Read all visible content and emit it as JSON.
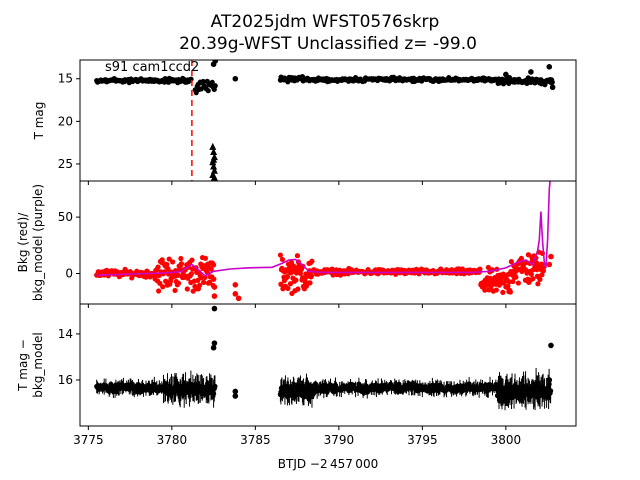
{
  "title_line1": "AT2025jdm  WFST0576skrp",
  "title_line2": "20.39g-WFST Unclassified z= -99.0",
  "chart_data": [
    {
      "type": "scatter",
      "panel": "top",
      "ylabel": "T mag",
      "y_inverted": true,
      "xlim": [
        3774.5,
        3804.2
      ],
      "ylim": [
        27.0,
        12.8
      ],
      "yticks": [
        15,
        20,
        25
      ],
      "annotation": "s91 cam1ccd2",
      "vline": {
        "x": 3781.2,
        "color": "#ff0000",
        "style": "dashed"
      },
      "series": [
        {
          "kind": "dots",
          "color": "#000000",
          "segments": [
            {
              "x0": 3775.5,
              "x1": 3781.2,
              "y": 15.2,
              "jitter": 0.35,
              "step": 0.05
            },
            {
              "x0": 3781.4,
              "x1": 3782.6,
              "y": 16.0,
              "jitter": 0.9,
              "step": 0.06
            },
            {
              "x0": 3786.5,
              "x1": 3788.0,
              "y": 15.0,
              "jitter": 0.4,
              "step": 0.04
            },
            {
              "x0": 3788.0,
              "x1": 3799.5,
              "y": 15.1,
              "jitter": 0.3,
              "step": 0.06
            },
            {
              "x0": 3799.5,
              "x1": 3802.8,
              "y": 15.3,
              "jitter": 0.5,
              "step": 0.04
            }
          ],
          "points": [
            [
              3782.6,
              12.9
            ],
            [
              3782.5,
              13.3
            ],
            [
              3783.8,
              15.0
            ],
            [
              3802.6,
              13.6
            ],
            [
              3802.8,
              16.0
            ],
            [
              3800.0,
              14.5
            ],
            [
              3801.5,
              14.2
            ]
          ]
        },
        {
          "kind": "triangles",
          "color": "#000000",
          "points": [
            [
              3782.45,
              23.0
            ],
            [
              3782.5,
              23.6
            ],
            [
              3782.55,
              24.2
            ],
            [
              3782.45,
              24.8
            ],
            [
              3782.5,
              25.3
            ],
            [
              3782.55,
              25.8
            ],
            [
              3782.45,
              26.3
            ],
            [
              3782.5,
              26.8
            ],
            [
              3782.55,
              26.6
            ],
            [
              3782.5,
              24.5
            ]
          ]
        }
      ]
    },
    {
      "type": "line",
      "panel": "middle",
      "ylabel": "Bkg (red)/\nbkg_model (purple)",
      "xlim": [
        3774.5,
        3804.2
      ],
      "ylim": [
        -27,
        82
      ],
      "yticks": [
        0,
        50
      ],
      "series": [
        {
          "name": "",
          "kind": "dots",
          "color": "#ff0000",
          "segments": [
            {
              "x0": 3775.5,
              "x1": 3779.0,
              "y": 0.0,
              "jitter": 4.5,
              "step": 0.05
            },
            {
              "x0": 3779.0,
              "x1": 3782.5,
              "y": 0.0,
              "jitter": 22.0,
              "step": 0.035
            },
            {
              "x0": 3786.5,
              "x1": 3788.4,
              "y": 0.0,
              "jitter": 22.0,
              "step": 0.03
            },
            {
              "x0": 3788.4,
              "x1": 3798.5,
              "y": 1.5,
              "jitter": 3.5,
              "step": 0.05
            },
            {
              "x0": 3798.5,
              "x1": 3800.3,
              "y": -8.0,
              "jitter": 16.0,
              "step": 0.03
            },
            {
              "x0": 3800.3,
              "x1": 3802.3,
              "y": 4.0,
              "jitter": 22.0,
              "step": 0.03
            }
          ],
          "points": [
            [
              3782.55,
              -12
            ],
            [
              3782.55,
              -20
            ],
            [
              3782.5,
              -5
            ],
            [
              3783.8,
              -10
            ],
            [
              3783.8,
              -18
            ],
            [
              3784.0,
              -22
            ],
            [
              3802.6,
              8
            ],
            [
              3802.7,
              15
            ]
          ]
        },
        {
          "name": "",
          "kind": "line",
          "color": "#cc00cc",
          "points": [
            [
              3775.5,
              -1.5
            ],
            [
              3776.5,
              -1.0
            ],
            [
              3777.5,
              -0.5
            ],
            [
              3778.5,
              0.0
            ],
            [
              3779.5,
              0.5
            ],
            [
              3780.5,
              1.5
            ],
            [
              3781.2,
              8.0
            ],
            [
              3781.6,
              3.0
            ],
            [
              3782.0,
              -2.0
            ],
            [
              3782.5,
              2.0
            ],
            [
              3783.5,
              4.0
            ],
            [
              3784.5,
              5.0
            ],
            [
              3786.0,
              5.5
            ],
            [
              3786.6,
              9.0
            ],
            [
              3787.0,
              12.0
            ],
            [
              3787.4,
              12.5
            ],
            [
              3787.8,
              8.0
            ],
            [
              3788.2,
              2.0
            ],
            [
              3789.0,
              1.0
            ],
            [
              3792.0,
              1.0
            ],
            [
              3795.0,
              1.0
            ],
            [
              3798.0,
              1.0
            ],
            [
              3799.0,
              2.0
            ],
            [
              3800.0,
              5.0
            ],
            [
              3800.7,
              10.0
            ],
            [
              3801.2,
              12.0
            ],
            [
              3801.6,
              8.0
            ],
            [
              3801.9,
              20.0
            ],
            [
              3802.0,
              30.0
            ],
            [
              3802.1,
              55.0
            ],
            [
              3802.2,
              28.0
            ],
            [
              3802.3,
              10.0
            ],
            [
              3802.4,
              5.0
            ],
            [
              3802.5,
              30.0
            ],
            [
              3802.6,
              75.0
            ],
            [
              3802.65,
              82.0
            ]
          ]
        }
      ]
    },
    {
      "type": "scatter",
      "panel": "bottom",
      "ylabel": "T mag −\nbkg_model",
      "y_inverted": true,
      "xlim": [
        3774.5,
        3804.2
      ],
      "ylim": [
        18.0,
        12.7
      ],
      "yticks": [
        14,
        16
      ],
      "xticks": [
        3775,
        3780,
        3785,
        3790,
        3795,
        3800
      ],
      "xlabel": "BTJD −2 457 000",
      "series": [
        {
          "kind": "errorbar_dots",
          "color": "#000000",
          "segments": [
            {
              "x0": 3775.5,
              "x1": 3779.5,
              "y": 16.35,
              "jitter": 0.25,
              "step": 0.05,
              "err": 0.25
            },
            {
              "x0": 3779.5,
              "x1": 3782.6,
              "y": 16.4,
              "jitter": 0.35,
              "step": 0.04,
              "err": 0.45
            },
            {
              "x0": 3786.5,
              "x1": 3788.5,
              "y": 16.5,
              "jitter": 0.35,
              "step": 0.03,
              "err": 0.4
            },
            {
              "x0": 3788.5,
              "x1": 3799.5,
              "y": 16.35,
              "jitter": 0.25,
              "step": 0.05,
              "err": 0.25
            },
            {
              "x0": 3799.5,
              "x1": 3802.7,
              "y": 16.5,
              "jitter": 0.4,
              "step": 0.03,
              "err": 0.5
            }
          ],
          "points": [
            [
              3782.55,
              12.9
            ],
            [
              3782.55,
              14.4
            ],
            [
              3782.5,
              14.6
            ],
            [
              3783.8,
              16.5
            ],
            [
              3783.8,
              16.7
            ],
            [
              3802.7,
              14.5
            ],
            [
              3802.6,
              16.0
            ]
          ]
        }
      ]
    }
  ]
}
